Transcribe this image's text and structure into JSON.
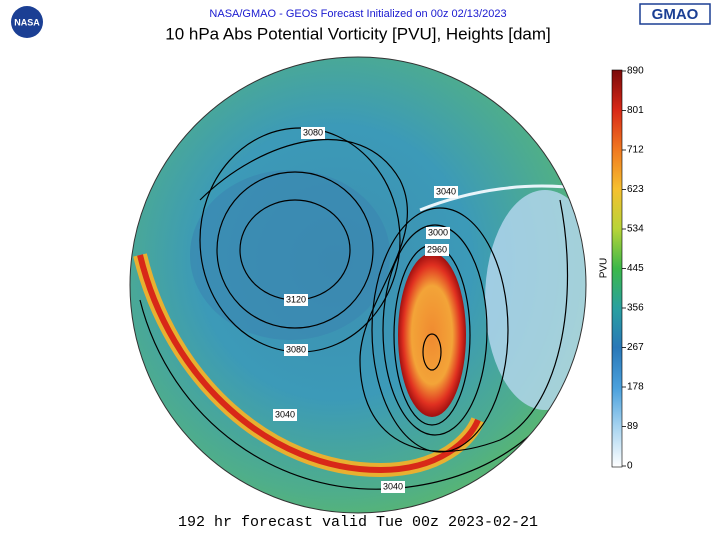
{
  "header": {
    "source": "NASA/GMAO - GEOS Forecast Initialized on 00z 02/13/2023",
    "title": "10 hPa Abs Potential Vorticity [PVU], Heights [dam]",
    "logo_left": "NASA",
    "logo_right": "GMAO"
  },
  "colorbar": {
    "label": "PVU",
    "range": [
      0,
      890
    ],
    "ticks": [
      0,
      89,
      178,
      267,
      356,
      445,
      534,
      623,
      712,
      801,
      890
    ]
  },
  "contour_labels": [
    3080,
    3120,
    3080,
    3040,
    3040,
    3000,
    2960,
    3040
  ],
  "footer": "192 hr forecast valid Tue 00z 2023-02-21"
}
